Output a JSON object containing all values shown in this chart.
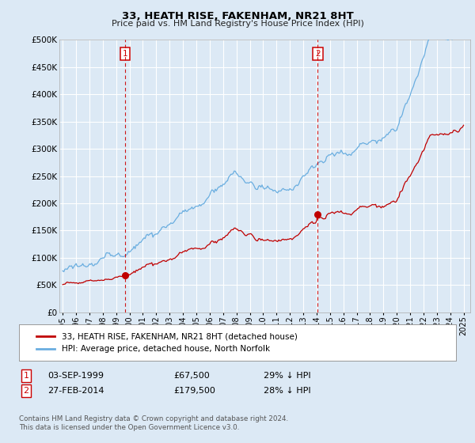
{
  "title": "33, HEATH RISE, FAKENHAM, NR21 8HT",
  "subtitle": "Price paid vs. HM Land Registry's House Price Index (HPI)",
  "bg_color": "#dce9f5",
  "plot_bg_color": "#dce9f5",
  "hpi_color": "#6aaee0",
  "price_color": "#c00000",
  "vline_color": "#cc0000",
  "purchase1_year": 1999,
  "purchase1_month": 9,
  "purchase1_price": 67500,
  "purchase2_year": 2014,
  "purchase2_month": 2,
  "purchase2_price": 179500,
  "legend_label1": "33, HEATH RISE, FAKENHAM, NR21 8HT (detached house)",
  "legend_label2": "HPI: Average price, detached house, North Norfolk",
  "footnote1": "Contains HM Land Registry data © Crown copyright and database right 2024.",
  "footnote2": "This data is licensed under the Open Government Licence v3.0.",
  "ylim": [
    0,
    500000
  ],
  "xlim_start": 1994.75,
  "xlim_end": 2025.5,
  "yticks": [
    0,
    50000,
    100000,
    150000,
    200000,
    250000,
    300000,
    350000,
    400000,
    450000,
    500000
  ],
  "ytick_labels": [
    "£0",
    "£50K",
    "£100K",
    "£150K",
    "£200K",
    "£250K",
    "£300K",
    "£350K",
    "£400K",
    "£450K",
    "£500K"
  ]
}
